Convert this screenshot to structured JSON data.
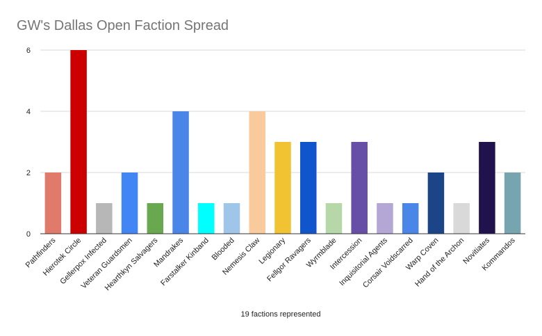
{
  "chart_data": {
    "type": "bar",
    "title": "GW's Dallas Open Faction Spread",
    "xlabel": "19 factions represented",
    "ylabel": "",
    "ylim": [
      0,
      6
    ],
    "yticks": [
      0,
      2,
      4,
      6
    ],
    "grid": true,
    "categories": [
      "Pathfinders",
      "Hierotek Circle",
      "Gellerpox Infected",
      "Veteran Guardsmen",
      "Hearthkyn Salvagers",
      "Mandrakes",
      "Farstalker Kinband",
      "Blooded",
      "Nemesis Claw",
      "Legionary",
      "Fellgor Ravagers",
      "Wyrmblade",
      "Intercession",
      "Inquisitorial Agents",
      "Corsair Voidscarred",
      "Warp Coven",
      "Hand of the Archon",
      "Novitiates",
      "Kommandos"
    ],
    "values": [
      2,
      6,
      1,
      2,
      1,
      4,
      1,
      1,
      4,
      3,
      3,
      1,
      3,
      1,
      1,
      2,
      1,
      3,
      2
    ],
    "colors": [
      "#e07b6b",
      "#cc0000",
      "#b7b7b7",
      "#4285f4",
      "#6aa84f",
      "#4a86e8",
      "#00ffff",
      "#9fc5e8",
      "#f9cb9c",
      "#f1c232",
      "#1155cc",
      "#b6d7a8",
      "#674ea7",
      "#b4a7d6",
      "#4a86e8",
      "#1c4587",
      "#d9d9d9",
      "#20124d",
      "#76a5af"
    ]
  }
}
